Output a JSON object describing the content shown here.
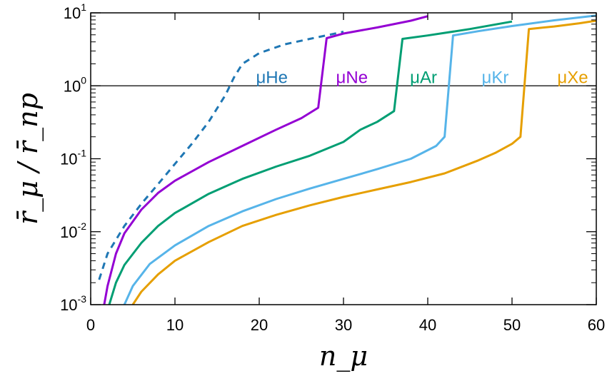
{
  "chart_data": {
    "type": "line",
    "title": "",
    "xlabel": "n_μ",
    "ylabel": "r̄_μ / r̄_np",
    "xscale": "linear",
    "yscale": "log",
    "xlim": [
      0,
      60
    ],
    "ylim": [
      0.001,
      10
    ],
    "x_ticks": [
      0,
      10,
      20,
      30,
      40,
      50,
      60
    ],
    "y_ticks": [
      {
        "value": 0.001,
        "base": "10",
        "exp": "-3"
      },
      {
        "value": 0.01,
        "base": "10",
        "exp": "-2"
      },
      {
        "value": 0.1,
        "base": "10",
        "exp": "-1"
      },
      {
        "value": 1,
        "base": "10",
        "exp": "0"
      },
      {
        "value": 10,
        "base": "10",
        "exp": "1"
      }
    ],
    "reference_line": {
      "y": 1
    },
    "series": [
      {
        "name": "μHe",
        "color": "#1f77b4",
        "dashed": true,
        "label_at": [
          21.5,
          1.3
        ],
        "points": [
          [
            1,
            0.0022
          ],
          [
            2,
            0.005
          ],
          [
            4,
            0.012
          ],
          [
            6,
            0.024
          ],
          [
            8,
            0.045
          ],
          [
            10,
            0.085
          ],
          [
            12,
            0.16
          ],
          [
            14,
            0.32
          ],
          [
            16,
            0.75
          ],
          [
            17,
            1.3
          ],
          [
            18,
            2.0
          ],
          [
            20,
            2.8
          ],
          [
            23,
            3.7
          ],
          [
            26,
            4.4
          ],
          [
            30,
            5.5
          ]
        ]
      },
      {
        "name": "μNe",
        "color": "#9400d3",
        "dashed": false,
        "label_at": [
          31,
          1.3
        ],
        "points": [
          [
            1.6,
            0.001
          ],
          [
            2,
            0.0018
          ],
          [
            3,
            0.005
          ],
          [
            4,
            0.0095
          ],
          [
            6,
            0.02
          ],
          [
            8,
            0.034
          ],
          [
            10,
            0.05
          ],
          [
            14,
            0.09
          ],
          [
            18,
            0.15
          ],
          [
            22,
            0.25
          ],
          [
            25,
            0.36
          ],
          [
            27,
            0.5
          ],
          [
            28,
            4.5
          ],
          [
            30,
            5.2
          ],
          [
            34,
            6.3
          ],
          [
            38,
            7.8
          ],
          [
            40,
            9.0
          ]
        ]
      },
      {
        "name": "μAr",
        "color": "#009e73",
        "dashed": false,
        "label_at": [
          39.5,
          1.3
        ],
        "points": [
          [
            2.2,
            0.001
          ],
          [
            3,
            0.002
          ],
          [
            4,
            0.0035
          ],
          [
            6,
            0.007
          ],
          [
            8,
            0.012
          ],
          [
            10,
            0.018
          ],
          [
            14,
            0.033
          ],
          [
            18,
            0.053
          ],
          [
            22,
            0.078
          ],
          [
            26,
            0.11
          ],
          [
            30,
            0.17
          ],
          [
            32,
            0.25
          ],
          [
            34,
            0.32
          ],
          [
            36,
            0.45
          ],
          [
            37,
            4.4
          ],
          [
            40,
            4.9
          ],
          [
            45,
            6.0
          ],
          [
            50,
            7.6
          ]
        ]
      },
      {
        "name": "μKr",
        "color": "#56b4e9",
        "dashed": false,
        "label_at": [
          48,
          1.3
        ],
        "points": [
          [
            4,
            0.001
          ],
          [
            5,
            0.0018
          ],
          [
            7,
            0.0036
          ],
          [
            10,
            0.0065
          ],
          [
            14,
            0.012
          ],
          [
            18,
            0.019
          ],
          [
            22,
            0.028
          ],
          [
            26,
            0.039
          ],
          [
            30,
            0.053
          ],
          [
            34,
            0.072
          ],
          [
            38,
            0.1
          ],
          [
            41,
            0.15
          ],
          [
            42,
            0.2
          ],
          [
            43,
            4.9
          ],
          [
            46,
            5.6
          ],
          [
            50,
            6.6
          ],
          [
            55,
            7.9
          ],
          [
            60,
            9.2
          ]
        ]
      },
      {
        "name": "μXe",
        "color": "#e69f00",
        "dashed": false,
        "label_at": [
          57.2,
          1.3
        ],
        "points": [
          [
            5,
            0.001
          ],
          [
            6,
            0.0015
          ],
          [
            8,
            0.0026
          ],
          [
            10,
            0.004
          ],
          [
            14,
            0.0072
          ],
          [
            18,
            0.012
          ],
          [
            22,
            0.017
          ],
          [
            26,
            0.023
          ],
          [
            30,
            0.03
          ],
          [
            34,
            0.038
          ],
          [
            38,
            0.048
          ],
          [
            42,
            0.063
          ],
          [
            46,
            0.095
          ],
          [
            48,
            0.12
          ],
          [
            50,
            0.16
          ],
          [
            51,
            0.2
          ],
          [
            52,
            6.0
          ],
          [
            55,
            6.5
          ],
          [
            58,
            7.2
          ],
          [
            60,
            7.8
          ]
        ]
      }
    ]
  }
}
